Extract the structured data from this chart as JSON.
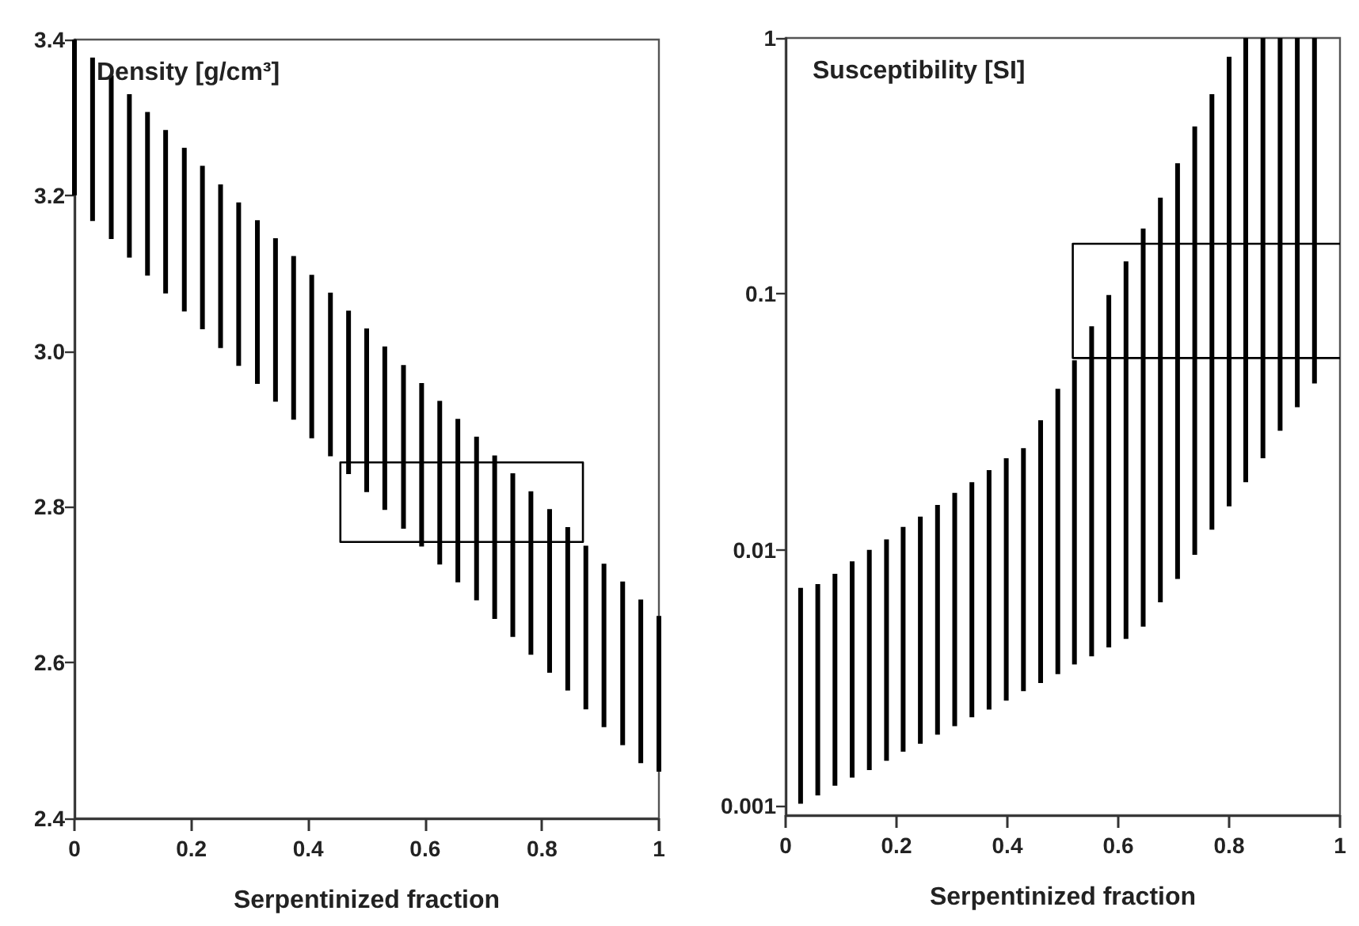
{
  "chart_data": [
    {
      "type": "bar",
      "title": "Density [g/cm³]",
      "xlabel": "Serpentinized fraction",
      "xlim": [
        0,
        1
      ],
      "xticks": [
        0,
        0.2,
        0.4,
        0.6,
        0.8,
        1
      ],
      "ylim": [
        2.4,
        3.4
      ],
      "yticks": [
        2.4,
        2.6,
        2.8,
        {
          "value": 3,
          "label": "3.0"
        },
        3.2,
        3.4
      ],
      "series": [
        {
          "color": "#000000",
          "x": [
            0,
            0.031,
            0.063,
            0.094,
            0.125,
            0.156,
            0.188,
            0.219,
            0.25,
            0.281,
            0.313,
            0.344,
            0.375,
            0.406,
            0.438,
            0.469,
            0.5,
            0.531,
            0.563,
            0.594,
            0.625,
            0.656,
            0.688,
            0.719,
            0.75,
            0.781,
            0.813,
            0.844,
            0.875,
            0.906,
            0.938,
            0.969,
            1
          ],
          "base": [
            3.2,
            3.167,
            3.144,
            3.12,
            3.097,
            3.074,
            3.051,
            3.028,
            3.004,
            2.981,
            2.958,
            2.935,
            2.912,
            2.888,
            2.865,
            2.842,
            2.819,
            2.796,
            2.772,
            2.749,
            2.726,
            2.703,
            2.68,
            2.656,
            2.633,
            2.61,
            2.587,
            2.564,
            2.54,
            2.517,
            2.494,
            2.471,
            2.46
          ],
          "values": [
            0.2,
            0.21,
            0.21,
            0.21,
            0.21,
            0.21,
            0.21,
            0.21,
            0.21,
            0.21,
            0.21,
            0.21,
            0.21,
            0.21,
            0.21,
            0.21,
            0.21,
            0.21,
            0.21,
            0.21,
            0.21,
            0.21,
            0.21,
            0.21,
            0.21,
            0.21,
            0.21,
            0.21,
            0.21,
            0.21,
            0.21,
            0.21,
            0.2
          ]
        },
        {
          "type": "line",
          "color": "#000000",
          "x": [
            0.455,
            0.455,
            0.87,
            0.87,
            0.455,
            0.455
          ],
          "values": [
            2.8,
            2.755,
            2.755,
            2.857,
            2.857,
            2.79
          ]
        }
      ]
    },
    {
      "type": "bar",
      "title": "Susceptibility [SI]",
      "xlabel": "Serpentinized fraction",
      "log": true,
      "xlim": [
        0,
        1
      ],
      "xticks": [
        0,
        0.2,
        0.4,
        0.6,
        0.8,
        1
      ],
      "ylim": [
        0.00092,
        1
      ],
      "yticks": [
        0.001,
        0.01,
        0.1,
        1
      ],
      "series": [
        {
          "color": "#000000",
          "x": [
            0.027,
            0.058,
            0.089,
            0.12,
            0.151,
            0.182,
            0.212,
            0.243,
            0.274,
            0.305,
            0.336,
            0.367,
            0.398,
            0.429,
            0.46,
            0.491,
            0.521,
            0.552,
            0.583,
            0.614,
            0.645,
            0.676,
            0.707,
            0.738,
            0.769,
            0.8,
            0.83,
            0.861,
            0.892,
            0.923,
            0.954
          ],
          "base": [
            0.00102,
            0.0011,
            0.0012,
            0.00129,
            0.00138,
            0.0015,
            0.00163,
            0.00175,
            0.0019,
            0.00205,
            0.00222,
            0.00238,
            0.00258,
            0.00281,
            0.00302,
            0.00327,
            0.00357,
            0.00384,
            0.00416,
            0.00449,
            0.00502,
            0.00625,
            0.0077,
            0.00957,
            0.012,
            0.0148,
            0.0184,
            0.0228,
            0.0292,
            0.0361,
            0.0447
          ],
          "values": [
            0.00609,
            0.00625,
            0.00687,
            0.00773,
            0.00862,
            0.0095,
            0.01067,
            0.01175,
            0.0131,
            0.01465,
            0.01618,
            0.01812,
            0.02022,
            0.02219,
            0.02908,
            0.03933,
            0.05153,
            0.07096,
            0.09494,
            0.12951,
            0.17498,
            0.23175,
            0.3163,
            0.44143,
            0.591,
            0.8302,
            0.9816,
            0.9772,
            0.9708,
            0.9639,
            0.9553
          ]
        },
        {
          "type": "line",
          "color": "#000000",
          "x": [
            1,
            0.518,
            0.518,
            1
          ],
          "values": [
            0.157,
            0.157,
            0.0562,
            0.0562
          ]
        }
      ]
    }
  ]
}
